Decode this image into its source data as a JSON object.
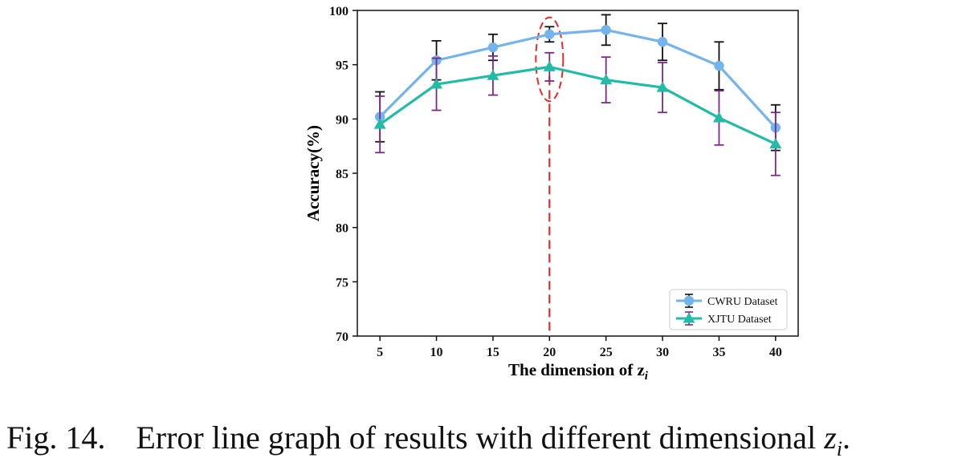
{
  "chart_data": {
    "type": "line",
    "title": "",
    "xlabel": "The dimension of z",
    "xlabel_subscript": "i",
    "ylabel": "Accuracy(%)",
    "x": [
      5,
      10,
      15,
      20,
      25,
      30,
      35,
      40
    ],
    "xticks": [
      "5",
      "10",
      "15",
      "20",
      "25",
      "30",
      "35",
      "40"
    ],
    "yticks": [
      "70",
      "75",
      "80",
      "85",
      "90",
      "95",
      "100"
    ],
    "xlim": [
      3,
      42
    ],
    "ylim": [
      70,
      100
    ],
    "grid": false,
    "legend_position": "bottom-right",
    "highlight_x": 20,
    "series": [
      {
        "name": "CWRU Dataset",
        "values": [
          90.2,
          95.4,
          96.6,
          97.8,
          98.2,
          97.1,
          94.9,
          89.2
        ],
        "errors": [
          2.3,
          1.8,
          1.2,
          0.7,
          1.4,
          1.7,
          2.2,
          2.1
        ],
        "color": "#74b3ec",
        "errorbar_color": "#111111",
        "marker": "circle"
      },
      {
        "name": "XJTU Dataset",
        "values": [
          89.5,
          93.2,
          94.0,
          94.8,
          93.6,
          92.9,
          90.1,
          87.7
        ],
        "errors": [
          2.6,
          2.4,
          1.8,
          1.3,
          2.1,
          2.3,
          2.5,
          2.9
        ],
        "color": "#22bba5",
        "errorbar_color": "#7a2a86",
        "marker": "triangle"
      }
    ]
  },
  "caption": {
    "figure_label": "Fig. 14.",
    "text": "Error line graph of results with different dimensional",
    "math_var": "z",
    "math_sub": "i",
    "end": "."
  }
}
